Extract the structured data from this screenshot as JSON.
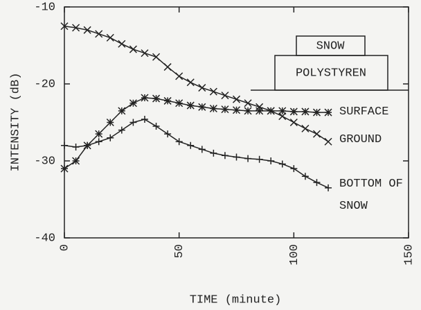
{
  "chart_data": {
    "type": "line",
    "xlabel": "TIME (minute)",
    "ylabel": "INTENSITY (dB)",
    "x": [
      0,
      5,
      10,
      15,
      20,
      25,
      30,
      35,
      40,
      45,
      50,
      55,
      60,
      65,
      70,
      75,
      80,
      85,
      90,
      95,
      100,
      105,
      110,
      115
    ],
    "series": [
      {
        "name": "SURFACE",
        "color": "#222222",
        "marker": "*",
        "values": [
          -31,
          -30,
          -28,
          -26.5,
          -25,
          -23.5,
          -22.5,
          -21.8,
          -21.9,
          -22.2,
          -22.5,
          -22.8,
          -23,
          -23.2,
          -23.3,
          -23.4,
          -23.5,
          -23.5,
          -23.5,
          -23.5,
          -23.6,
          -23.6,
          -23.7,
          -23.7
        ]
      },
      {
        "name": "GROUND",
        "color": "#222222",
        "marker": "x",
        "values": [
          -12.5,
          -12.7,
          -13,
          -13.5,
          -14,
          -14.8,
          -15.5,
          -16,
          -16.5,
          -17.8,
          -19,
          -19.8,
          -20.5,
          -21,
          -21.5,
          -22,
          -22.5,
          -23,
          -23.5,
          -24.2,
          -25,
          -25.8,
          -26.5,
          -27.5
        ]
      },
      {
        "name": "BOTTOM OF SNOW",
        "color": "#222222",
        "marker": "+",
        "values": [
          -28,
          -28.2,
          -28,
          -27.5,
          -27,
          -26,
          -25,
          -24.6,
          -25.5,
          -26.5,
          -27.5,
          -28,
          -28.5,
          -29,
          -29.3,
          -29.5,
          -29.7,
          -29.8,
          -30,
          -30.4,
          -31,
          -32,
          -32.8,
          -33.5
        ]
      }
    ],
    "xlim": [
      0,
      150
    ],
    "xticks": [
      0,
      50,
      100,
      150
    ],
    "ylim": [
      -40,
      -10
    ],
    "yticks": [
      -40,
      -30,
      -20,
      -10
    ],
    "diagram": {
      "top": "SNOW",
      "bottom": "POLYSTYREN"
    }
  }
}
